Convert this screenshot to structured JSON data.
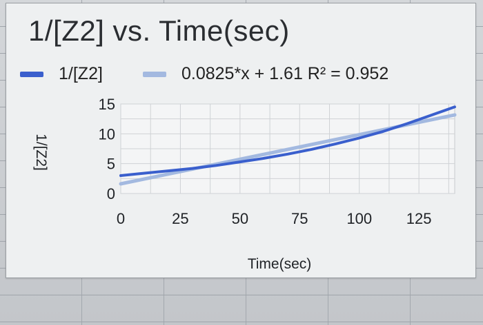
{
  "chart_data": {
    "type": "line",
    "title": "1/[Z2] vs. Time(sec)",
    "xlabel": "Time(sec)",
    "ylabel": "1/[Z2]",
    "xlim": [
      0,
      140
    ],
    "ylim": [
      0,
      15
    ],
    "x_ticks": [
      0,
      25,
      50,
      75,
      100,
      125
    ],
    "y_ticks": [
      0,
      5,
      10,
      15
    ],
    "grid": true,
    "legend_position": "top",
    "series": [
      {
        "name": "1/[Z2]",
        "color": "#3a5fcd",
        "x": [
          0,
          10,
          20,
          30,
          40,
          50,
          60,
          70,
          80,
          90,
          100,
          110,
          120,
          130,
          140
        ],
        "y": [
          3.0,
          3.4,
          3.8,
          4.2,
          4.7,
          5.3,
          5.9,
          6.6,
          7.4,
          8.3,
          9.3,
          10.4,
          11.7,
          13.1,
          14.5
        ]
      },
      {
        "name": "0.0825*x + 1.61 R² = 0.952",
        "color": "#a3b9e0",
        "x": [
          0,
          140
        ],
        "y": [
          1.61,
          13.16
        ]
      }
    ]
  }
}
